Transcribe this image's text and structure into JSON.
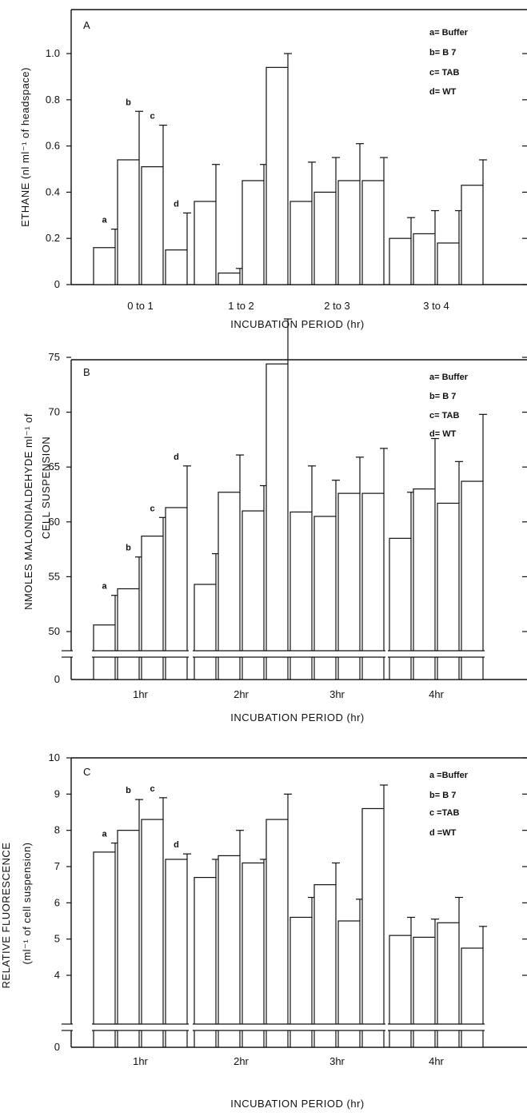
{
  "chart_data": [
    {
      "type": "bar",
      "panel": "A",
      "xlabel": "INCUBATION PERIOD (hr)",
      "ylabel": "ETHANE (nl ml⁻¹ of headspace)",
      "ylim": [
        0,
        1.2
      ],
      "yticks": [
        "0",
        "0.2",
        "0.4",
        "0.6",
        "0.8",
        "1.0"
      ],
      "categories": [
        "0 to 1",
        "1 to 2",
        "2 to 3",
        "3 to 4"
      ],
      "legend": [
        "a= Buffer",
        "b= B 7",
        "c= TAB",
        "d= WT"
      ],
      "bar_letters": [
        "a",
        "b",
        "c",
        "d"
      ],
      "series": [
        {
          "values": [
            0.16,
            0.36,
            0.36,
            0.2
          ],
          "errors": [
            0.08,
            0.16,
            0.17,
            0.09
          ]
        },
        {
          "values": [
            0.54,
            0.05,
            0.4,
            0.22
          ],
          "errors": [
            0.21,
            0.02,
            0.15,
            0.1
          ]
        },
        {
          "values": [
            0.51,
            0.45,
            0.45,
            0.18
          ],
          "errors": [
            0.18,
            0.07,
            0.16,
            0.14
          ]
        },
        {
          "values": [
            0.15,
            0.94,
            0.45,
            0.43
          ],
          "errors": [
            0.16,
            0.06,
            0.1,
            0.11
          ]
        }
      ]
    },
    {
      "type": "bar",
      "panel": "B",
      "xlabel": "INCUBATION PERIOD (hr)",
      "ylabel": "NMOLES MALONDIALDEHYDE ml⁻¹ of CELL SUSPENSION",
      "ylim": [
        45,
        80
      ],
      "axis_break": true,
      "yticks": [
        "0",
        "50",
        "55",
        "60",
        "65",
        "70",
        "75"
      ],
      "categories": [
        "1hr",
        "2hr",
        "3hr",
        "4hr"
      ],
      "legend": [
        "a= Buffer",
        "b= B 7",
        "c= TAB",
        "d= WT"
      ],
      "bar_letters": [
        "a",
        "b",
        "c",
        "d"
      ],
      "series": [
        {
          "values": [
            50.6,
            54.3,
            60.9,
            58.5
          ],
          "errors": [
            2.7,
            2.8,
            4.2,
            4.2
          ]
        },
        {
          "values": [
            53.9,
            62.7,
            60.5,
            63.0
          ],
          "errors": [
            2.9,
            3.4,
            3.3,
            4.6
          ]
        },
        {
          "values": [
            58.7,
            61.0,
            62.6,
            61.7
          ],
          "errors": [
            1.7,
            2.3,
            3.3,
            3.8
          ]
        },
        {
          "values": [
            61.3,
            74.4,
            62.6,
            63.7
          ],
          "errors": [
            3.8,
            4.1,
            4.1,
            6.1
          ]
        }
      ]
    },
    {
      "type": "bar",
      "panel": "C",
      "xlabel": "INCUBATION PERIOD (hr)",
      "ylabel": "RELATIVE FLUORESCENCE (ml⁻¹ of cell suspension)",
      "ylim": [
        3.5,
        10
      ],
      "axis_break": true,
      "yticks": [
        "0",
        "4",
        "5",
        "6",
        "7",
        "8",
        "9",
        "10"
      ],
      "categories": [
        "1hr",
        "2hr",
        "3hr",
        "4hr"
      ],
      "legend": [
        "a =Buffer",
        "b= B 7",
        "c =TAB",
        "d =WT"
      ],
      "bar_letters": [
        "a",
        "b",
        "c",
        "d"
      ],
      "series": [
        {
          "values": [
            7.4,
            6.7,
            5.6,
            5.1
          ],
          "errors": [
            0.25,
            0.5,
            0.55,
            0.5
          ]
        },
        {
          "values": [
            8.0,
            7.3,
            6.5,
            5.05
          ],
          "errors": [
            0.85,
            0.7,
            0.6,
            0.5
          ]
        },
        {
          "values": [
            8.3,
            7.1,
            5.5,
            5.45
          ],
          "errors": [
            0.6,
            0.1,
            0.6,
            0.7
          ]
        },
        {
          "values": [
            7.2,
            8.3,
            8.6,
            4.75
          ],
          "errors": [
            0.15,
            0.7,
            0.65,
            0.6
          ]
        }
      ]
    }
  ]
}
